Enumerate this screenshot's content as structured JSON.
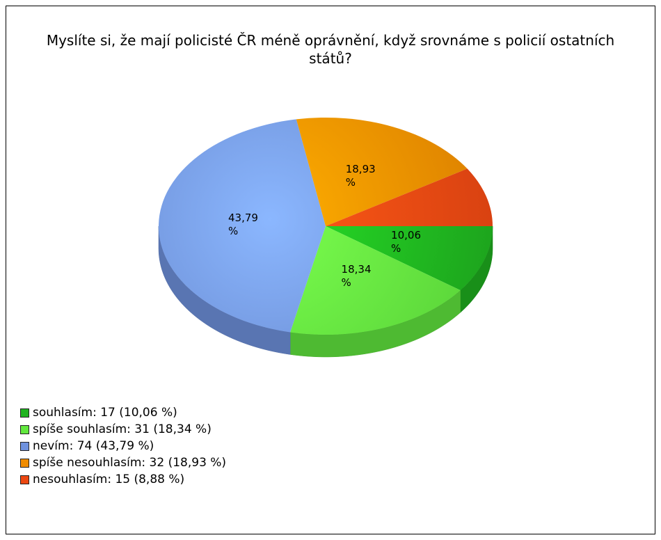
{
  "chart_data": {
    "type": "pie",
    "title": "Myslíte si, že mají policisté ČR méně oprávnění, když srovnáme s policií ostatních států?",
    "categories": [
      "souhlasím",
      "spíše souhlasím",
      "nevím",
      "spíše nesouhlasím",
      "nesouhlasím"
    ],
    "counts": [
      17,
      31,
      74,
      32,
      15
    ],
    "values": [
      10.06,
      18.34,
      43.79,
      18.93,
      8.88
    ],
    "value_labels": [
      "10,06 %",
      "18,34 %",
      "43,79 %",
      "18,93 %",
      null
    ],
    "legend_labels": [
      "souhlasím: 17 (10,06 %)",
      "spíše souhlasím: 31 (18,34 %)",
      "nevím: 74 (43,79 %)",
      "spíše nesouhlasím: 32 (18,93 %)",
      "nesouhlasím: 15 (8,88 %)"
    ],
    "colors": [
      "#1fb31f",
      "#62e83e",
      "#6f92de",
      "#f08c00",
      "#ec4812"
    ]
  }
}
